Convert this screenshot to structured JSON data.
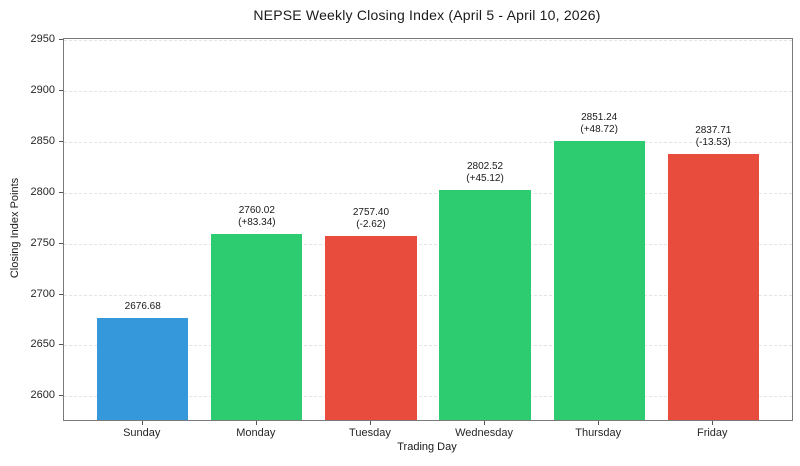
{
  "chart_data": {
    "type": "bar",
    "title": "NEPSE Weekly Closing Index (April 5 - April 10, 2026)",
    "xlabel": "Trading Day",
    "ylabel": "Closing Index Points",
    "categories": [
      "Sunday",
      "Monday",
      "Tuesday",
      "Wednesday",
      "Thursday",
      "Friday"
    ],
    "values": [
      2676.68,
      2760.02,
      2757.4,
      2802.52,
      2851.24,
      2837.71
    ],
    "changes": [
      null,
      83.34,
      -2.62,
      45.12,
      48.72,
      -13.53
    ],
    "value_labels": [
      "2676.68",
      "2760.02",
      "2757.40",
      "2802.52",
      "2851.24",
      "2837.71"
    ],
    "change_labels": [
      "",
      "(+83.34)",
      "(-2.62)",
      "(+45.12)",
      "(+48.72)",
      "(-13.53)"
    ],
    "bar_colors": [
      "#3498db",
      "#2ecc71",
      "#e74c3c",
      "#2ecc71",
      "#2ecc71",
      "#e74c3c"
    ],
    "ylim": [
      2576.68,
      2951.24
    ],
    "yticks": [
      2600,
      2650,
      2700,
      2750,
      2800,
      2850,
      2900,
      2950
    ],
    "grid": "horizontal-dashed",
    "legend": "none",
    "colors": {
      "start_day": "#3498db",
      "gain": "#2ecc71",
      "loss": "#e74c3c",
      "grid": "#e4e4e4",
      "spine": "#7a7a7a",
      "text": "#1a1a1a"
    }
  }
}
